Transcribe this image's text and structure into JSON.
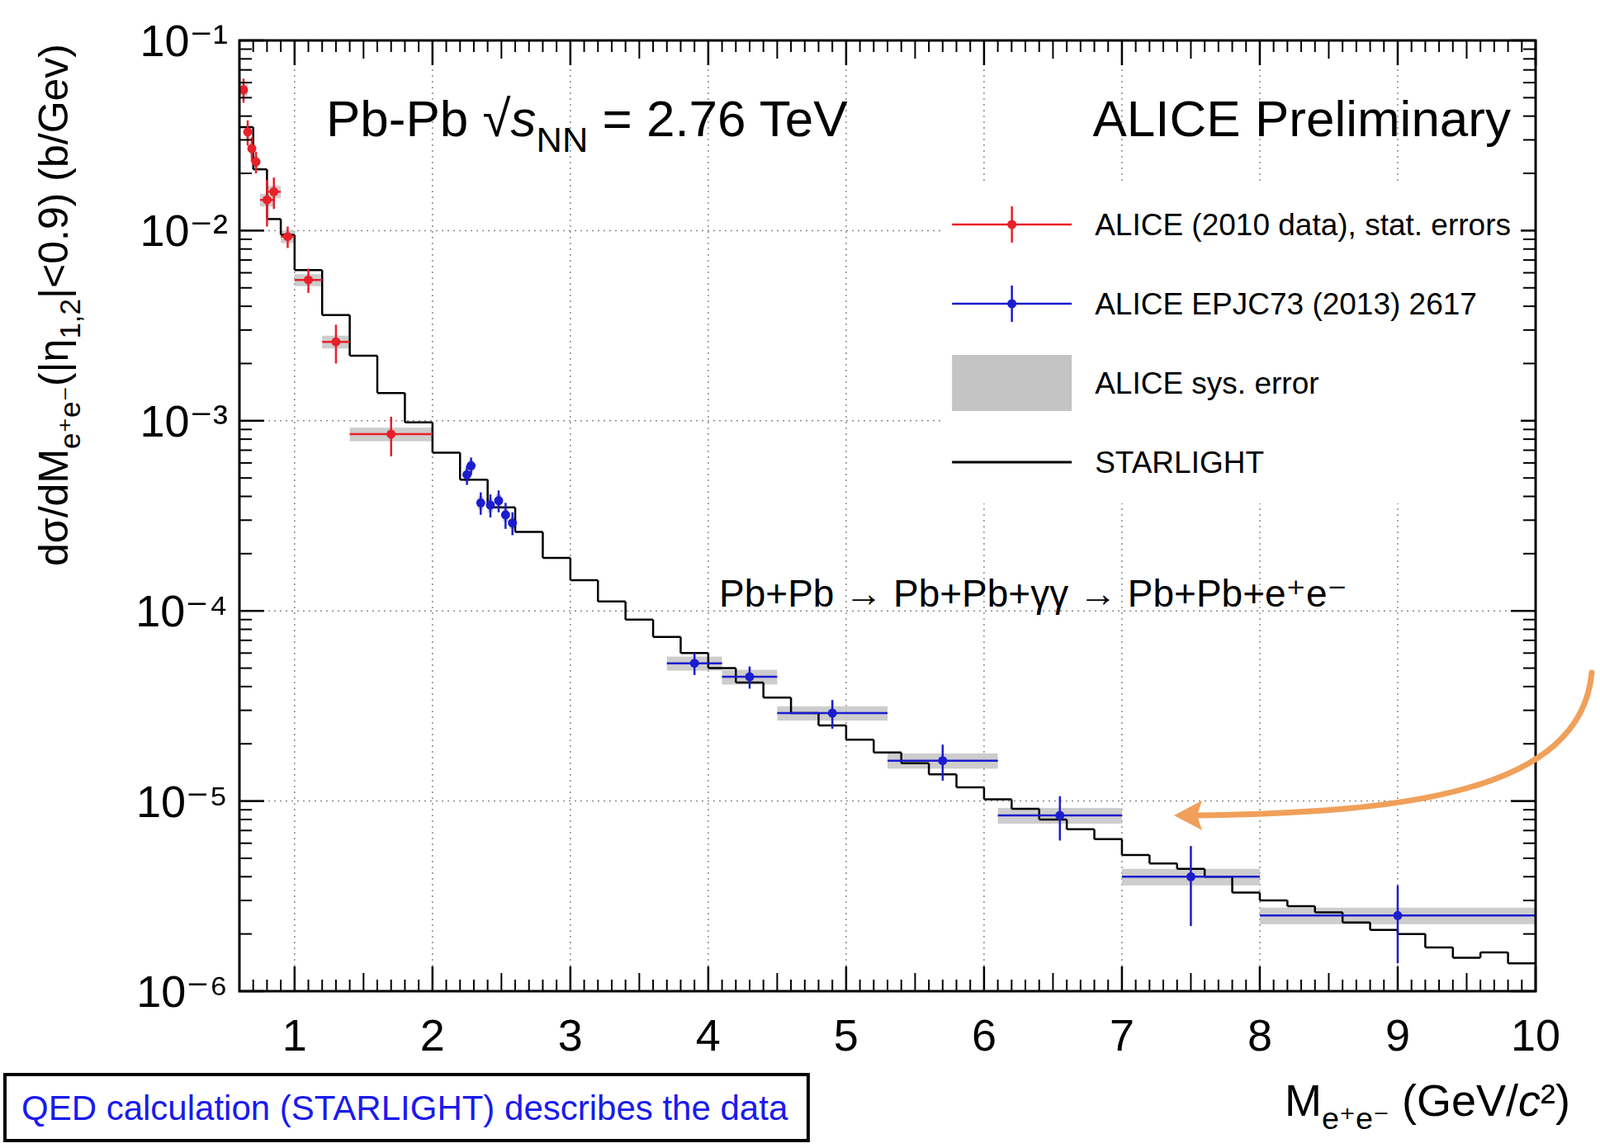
{
  "chart_data": {
    "type": "scatter",
    "title": [
      {
        "text": "Pb-Pb √"
      },
      {
        "text": "s",
        "italic": true
      },
      {
        "text": "NN",
        "sub": true
      },
      {
        "text": " = 2.76 TeV"
      }
    ],
    "subtitle": "ALICE Preliminary",
    "annotation": "Pb+Pb → Pb+Pb+γγ → Pb+Pb+e⁺e⁻",
    "note": "QED calculation (STARLIGHT) describes the data",
    "x_label": [
      {
        "text": "M"
      },
      {
        "text": "e⁺e⁻",
        "sub": true
      },
      {
        "text": " (GeV/"
      },
      {
        "text": "c",
        "italic": true
      },
      {
        "text": "²)"
      }
    ],
    "y_label": [
      {
        "text": "dσ/dM"
      },
      {
        "text": "e⁺e⁻",
        "sub": true
      },
      {
        "text": "(|η"
      },
      {
        "text": "1,2",
        "sub": true
      },
      {
        "text": "|<0.9) (b/Gev)"
      }
    ],
    "log": "y",
    "grid": true,
    "legend": "top-right",
    "xlim": [
      0.6,
      10
    ],
    "ylim": [
      1e-06,
      0.1
    ],
    "xticks": [
      1,
      2,
      3,
      4,
      5,
      6,
      7,
      8,
      9,
      10
    ],
    "yticks": [
      {
        "value": 1e-06,
        "label": "10⁻⁶"
      },
      {
        "value": 1e-05,
        "label": "10⁻⁵"
      },
      {
        "value": 0.0001,
        "label": "10⁻⁴"
      },
      {
        "value": 0.001,
        "label": "10⁻³"
      },
      {
        "value": 0.01,
        "label": "10⁻²"
      },
      {
        "value": 0.1,
        "label": "10⁻¹"
      }
    ],
    "sys_error": {
      "name": "ALICE sys. error",
      "color": "#c4c4c4"
    },
    "series": [
      {
        "name": "ALICE (2010 data), stat. errors",
        "color": "#e8202a",
        "type": "scatter",
        "marker": "circle",
        "x": [
          0.63,
          0.66,
          0.69,
          0.72,
          0.8,
          0.85,
          0.95,
          1.1,
          1.3,
          1.7
        ],
        "x_errors": [
          0.03,
          0.015,
          0.015,
          0.015,
          0.05,
          0.05,
          0.05,
          0.1,
          0.1,
          0.3
        ],
        "values": [
          0.055,
          0.033,
          0.027,
          0.023,
          0.0145,
          0.016,
          0.0093,
          0.0055,
          0.0026,
          0.00085
        ],
        "y_errors": [
          0.008,
          0.005,
          0.004,
          0.003,
          0.004,
          0.003,
          0.0012,
          0.0008,
          0.0006,
          0.0002
        ],
        "sys_errors": [
          0.004,
          0.0025,
          0.002,
          0.0017,
          0.0011,
          0.0012,
          0.0007,
          0.0004,
          0.0002,
          7e-05
        ]
      },
      {
        "name": "ALICE EPJC73 (2013) 2617",
        "color": "#1c1ccf",
        "type": "scatter",
        "marker": "circle",
        "x": [
          2.25,
          2.28,
          2.35,
          2.42,
          2.48,
          2.53,
          2.58,
          3.9,
          4.3,
          4.9,
          5.7,
          6.55,
          7.5,
          9.0
        ],
        "x_errors": [
          0.02,
          0.02,
          0.02,
          0.02,
          0.02,
          0.02,
          0.02,
          0.2,
          0.2,
          0.4,
          0.4,
          0.45,
          0.5,
          1.0
        ],
        "values": [
          0.00052,
          0.00058,
          0.00037,
          0.00036,
          0.00038,
          0.00032,
          0.00029,
          5.3e-05,
          4.5e-05,
          2.9e-05,
          1.63e-05,
          8.4e-06,
          4e-06,
          2.5e-06
        ],
        "y_errors": [
          6e-05,
          6e-05,
          5e-05,
          5e-05,
          5e-05,
          5e-05,
          4e-05,
          7e-06,
          6e-06,
          5e-06,
          3.5e-06,
          2.2e-06,
          1.8e-06,
          1.1e-06
        ],
        "sys_errors": [
          4e-05,
          4e-05,
          3e-05,
          3e-05,
          3e-05,
          2.5e-05,
          2e-05,
          4.5e-06,
          4e-06,
          2.5e-06,
          1.5e-06,
          8e-07,
          4e-07,
          2.5e-07
        ]
      },
      {
        "name": "STARLIGHT",
        "color": "#000000",
        "type": "step",
        "line_style": "solid",
        "bins": [
          0.6,
          0.7,
          0.8,
          0.9,
          1.0,
          1.2,
          1.4,
          1.6,
          1.8,
          2.0,
          2.2,
          2.4,
          2.6,
          2.8,
          3.0,
          3.2,
          3.4,
          3.6,
          3.8,
          4.0,
          4.2,
          4.4,
          4.6,
          4.8,
          5.0,
          5.2,
          5.4,
          5.6,
          5.8,
          6.0,
          6.2,
          6.4,
          6.6,
          6.8,
          7.0,
          7.2,
          7.4,
          7.6,
          7.8,
          8.0,
          8.2,
          8.4,
          8.6,
          8.8,
          9.0,
          9.2,
          9.4,
          9.6,
          9.8,
          10.0
        ],
        "values": [
          0.035,
          0.021,
          0.0115,
          0.0095,
          0.0062,
          0.0036,
          0.0022,
          0.0014,
          0.00098,
          0.00068,
          0.00049,
          0.00035,
          0.00026,
          0.00019,
          0.000145,
          0.000112,
          9e-05,
          7.3e-05,
          6e-05,
          5e-05,
          4.2e-05,
          3.5e-05,
          2.9e-05,
          2.5e-05,
          2.1e-05,
          1.8e-05,
          1.58e-05,
          1.38e-05,
          1.18e-05,
          1.02e-05,
          9.1e-06,
          8e-06,
          7.1e-06,
          6.3e-06,
          5.2e-06,
          4.7e-06,
          4.4e-06,
          4e-06,
          3.3e-06,
          3e-06,
          2.8e-06,
          2.6e-06,
          2.3e-06,
          2.1e-06,
          2e-06,
          1.7e-06,
          1.5e-06,
          1.6e-06,
          1.4e-06
        ]
      }
    ]
  }
}
